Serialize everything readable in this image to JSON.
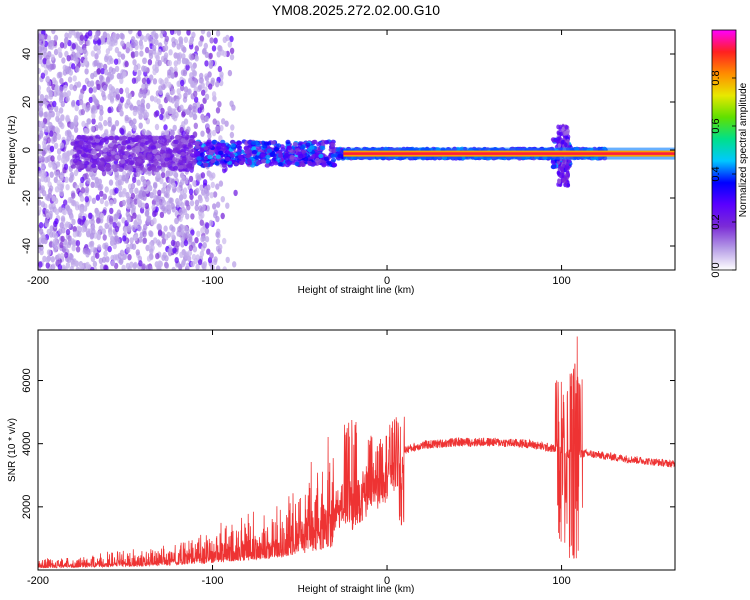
{
  "figure": {
    "title": "YM08.2025.272.02.00.G10"
  },
  "chart_data": [
    {
      "type": "heatmap",
      "xlabel": "Height of straight line (km)",
      "ylabel": "Frequency (Hz)",
      "xlim": [
        -200,
        165
      ],
      "ylim": [
        -50,
        50
      ],
      "xticks": [
        -200,
        -100,
        0,
        100
      ],
      "xtick_labels": [
        "-200",
        "-100",
        "0",
        "100"
      ],
      "yticks": [
        -40,
        -20,
        0,
        20,
        40
      ],
      "ytick_labels": [
        "-40",
        "-20",
        "0",
        "20",
        "40"
      ],
      "colorbar": {
        "label": "Normalized spectral amplitude",
        "range": [
          0,
          1
        ],
        "ticks": [
          0.0,
          0.2,
          0.4,
          0.6,
          0.8
        ],
        "tick_labels": [
          "0.0",
          "0.2",
          "0.4",
          "0.6",
          "0.8"
        ],
        "colors": [
          "#ffffff",
          "#b59be6",
          "#7b2bd6",
          "#5a00ff",
          "#0000ff",
          "#00c8ff",
          "#00e08a",
          "#60e000",
          "#e8e800",
          "#ff8c00",
          "#ff2020",
          "#ff00ff"
        ]
      },
      "signal_description_points": [
        {
          "x": -200,
          "scatter": "dense"
        },
        {
          "x": -110,
          "scatter": "fading"
        },
        {
          "x": -25,
          "carrier_start": true
        },
        {
          "x": 100,
          "disturbance": true
        }
      ],
      "carrier_frequency_hz": -1.5
    },
    {
      "type": "line",
      "xlabel": "Height of straight line (km)",
      "ylabel": "SNR (10 * v/v)",
      "xlim": [
        -200,
        165
      ],
      "ylim": [
        0,
        7600
      ],
      "xticks": [
        -200,
        -100,
        0,
        100
      ],
      "xtick_labels": [
        "-200",
        "-100",
        "0",
        "100"
      ],
      "yticks": [
        2000,
        4000,
        6000
      ],
      "ytick_labels": [
        "2000",
        "4000",
        "6000"
      ],
      "series": [
        {
          "name": "SNR",
          "color": "#ee3333",
          "envelope": {
            "x": [
              -200,
              -180,
              -160,
              -140,
              -120,
              -100,
              -80,
              -60,
              -50,
              -40,
              -30,
              -25,
              -20,
              -15,
              -10,
              -5,
              0,
              5,
              10,
              20,
              30,
              40,
              60,
              80,
              95,
              100,
              104,
              108,
              112,
              120,
              140,
              165
            ],
            "y": [
              150,
              180,
              240,
              300,
              400,
              550,
              750,
              1000,
              1250,
              1500,
              1800,
              2100,
              2200,
              2300,
              2650,
              3000,
              3350,
              3600,
              3800,
              3950,
              4000,
              4050,
              4050,
              4000,
              3850,
              3800,
              3600,
              3700,
              3700,
              3650,
              3500,
              3350
            ]
          },
          "spikes": [
            {
              "x": -19,
              "max": 4950,
              "min": 1100
            },
            {
              "x": -23,
              "max": 4700,
              "min": 1400
            },
            {
              "x": -10,
              "max": 4300,
              "min": 2000
            },
            {
              "x": 8,
              "max": 3700,
              "min": 1300
            },
            {
              "x": 106,
              "max": 6800,
              "min": 300
            },
            {
              "x": 108,
              "max": 7600,
              "min": 200
            },
            {
              "x": 102,
              "max": 5600,
              "min": 2300
            }
          ]
        }
      ]
    }
  ]
}
